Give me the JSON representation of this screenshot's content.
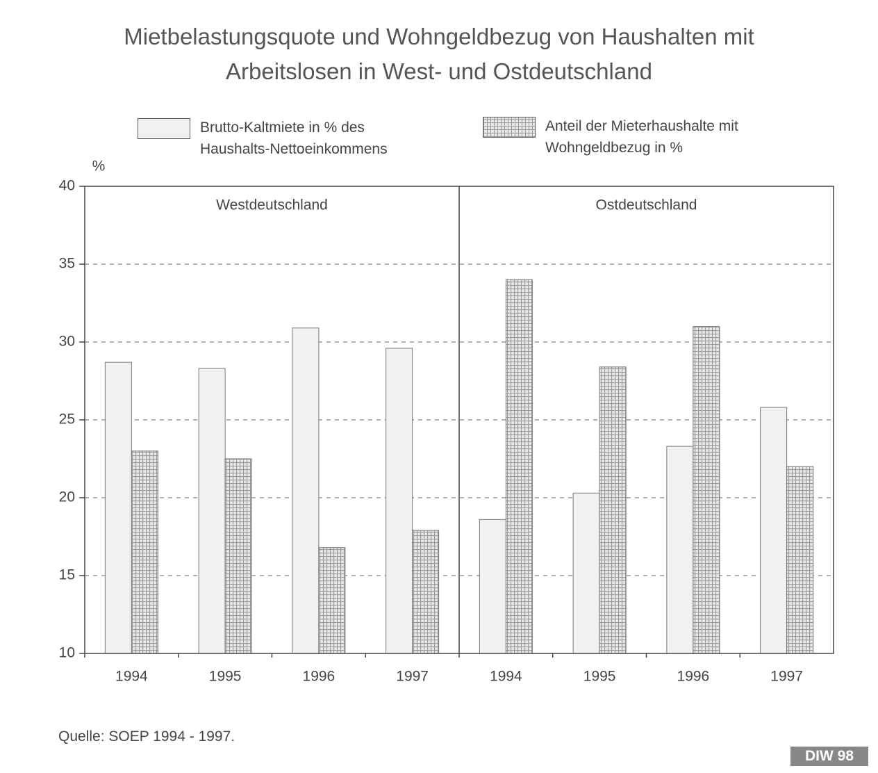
{
  "chart_data": {
    "type": "bar",
    "title": "Mietbelastungsquote und Wohngeldbezug von Haushalten mit Arbeitslosen in West- und Ostdeutschland",
    "ylabel": "%",
    "panels": [
      "Westdeutschland",
      "Ostdeutschland"
    ],
    "categories": [
      "1994",
      "1995",
      "1996",
      "1997",
      "1994",
      "1995",
      "1996",
      "1997"
    ],
    "series": [
      {
        "name": "Brutto-Kaltmiete in % des Haushalts-Nettoeinkommens",
        "color": "#f1f1f1",
        "values": [
          28.7,
          28.3,
          30.9,
          29.6,
          18.6,
          20.3,
          23.3,
          25.8
        ]
      },
      {
        "name": "Anteil der Mieterhaushalte mit Wohngeldbezug in %",
        "color": "#9a9a9a",
        "values": [
          23.0,
          22.5,
          16.8,
          17.9,
          34.0,
          28.4,
          31.0,
          22.0
        ]
      }
    ],
    "ylim": [
      10,
      40
    ],
    "yticks": [
      10,
      15,
      20,
      25,
      30,
      35,
      40
    ],
    "grid": true,
    "source": "Quelle: SOEP 1994 - 1997.",
    "badge": "DIW 98"
  }
}
